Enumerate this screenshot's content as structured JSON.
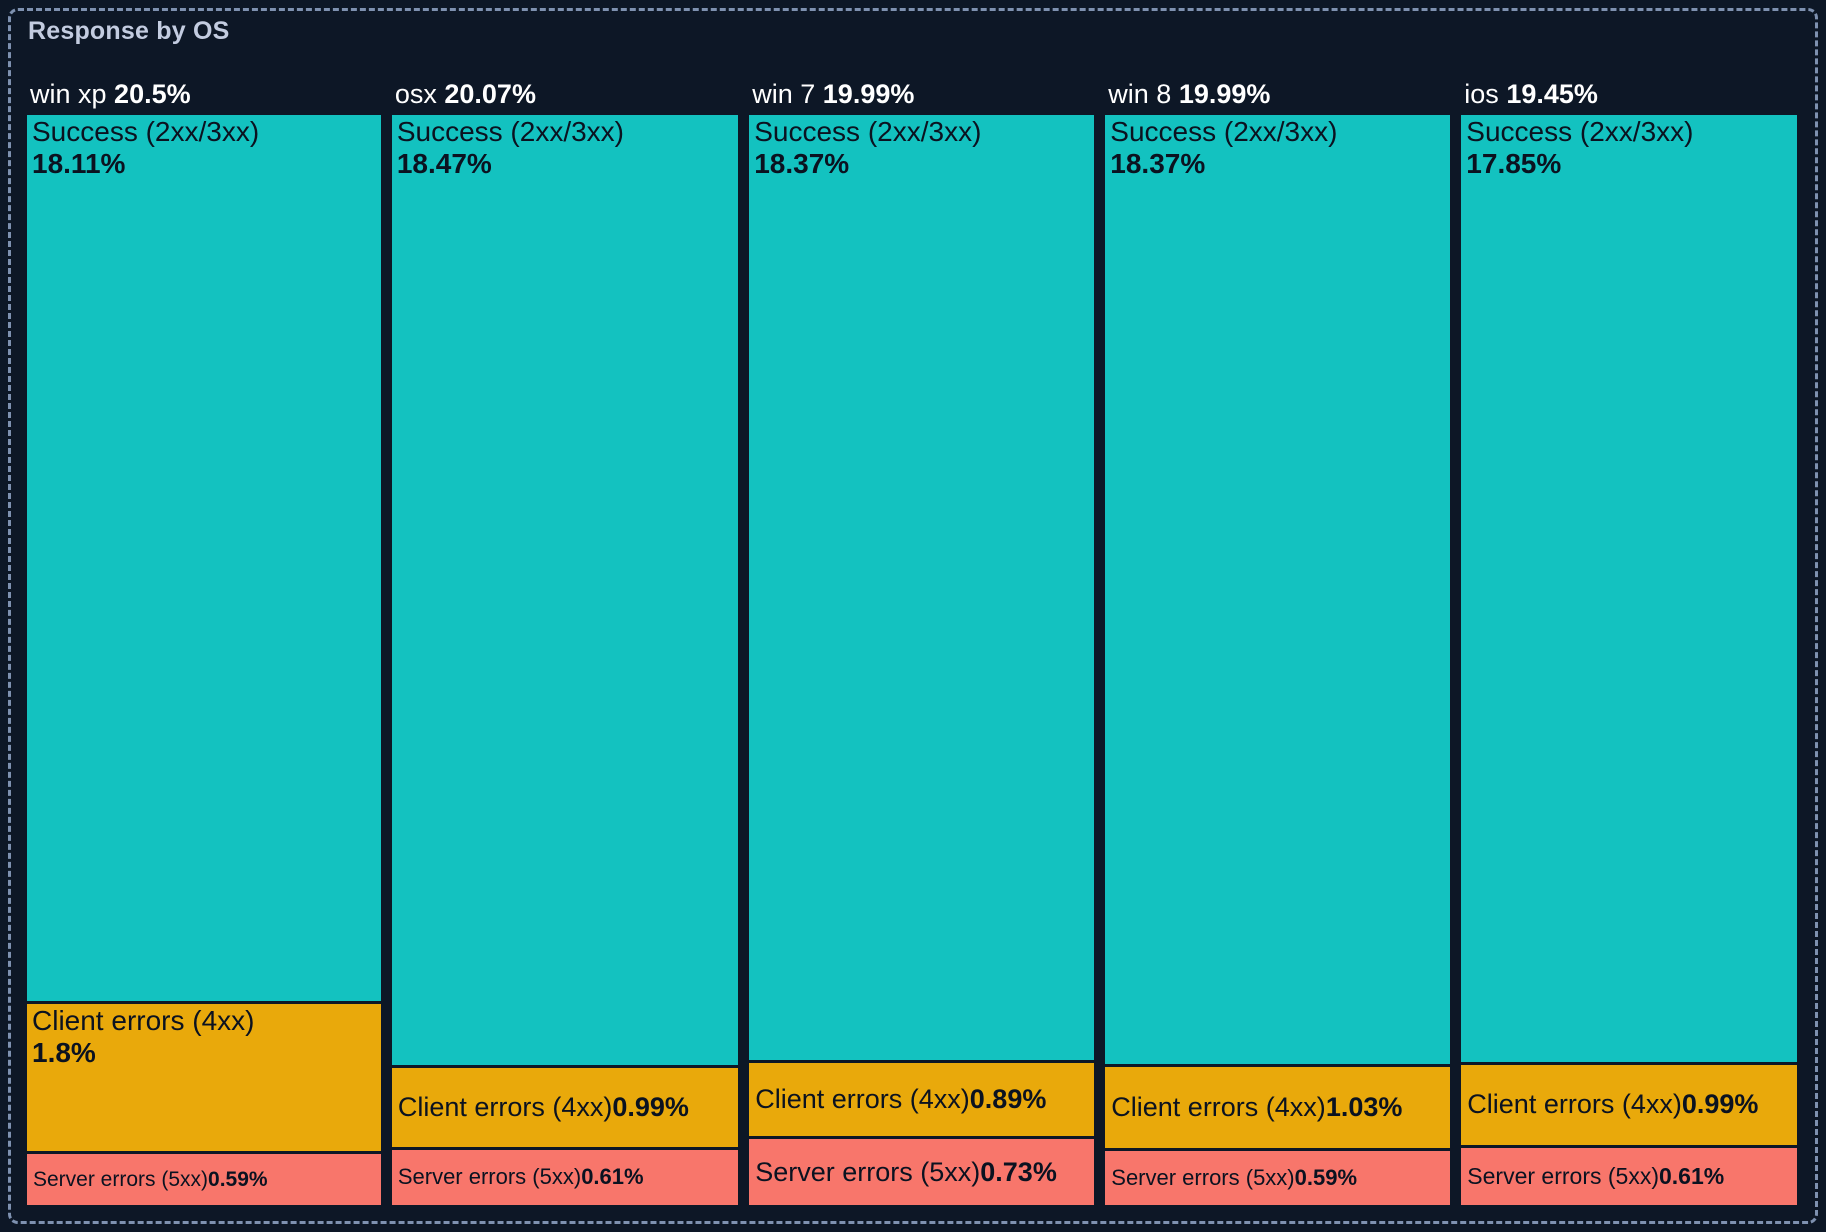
{
  "title": "Response by OS",
  "colors": {
    "background": "#0d1726",
    "frame_border": "#7e91b0",
    "title_text": "#c3cce0",
    "header_text": "#ffffff",
    "segment_text": "#0b1220",
    "success": "#13c2c0",
    "client_errors": "#e9a90b",
    "server_errors": "#f8766b"
  },
  "chart_data": {
    "type": "treemap",
    "title": "Response by OS",
    "unit": "%",
    "orientation": "columns-proportional-width, segments-proportional-height",
    "groups": [
      {
        "name": "win xp",
        "share": 20.5,
        "share_label": "20.5%",
        "segments": [
          {
            "label": "Success (2xx/3xx)",
            "value": 18.11,
            "value_label": "18.11%",
            "category": "success"
          },
          {
            "label": "Client errors (4xx)",
            "value": 1.8,
            "value_label": "1.8%",
            "category": "client_errors"
          },
          {
            "label": "Server errors (5xx)",
            "value": 0.59,
            "value_label": "0.59%",
            "category": "server_errors"
          }
        ]
      },
      {
        "name": "osx",
        "share": 20.07,
        "share_label": "20.07%",
        "segments": [
          {
            "label": "Success (2xx/3xx)",
            "value": 18.47,
            "value_label": "18.47%",
            "category": "success"
          },
          {
            "label": "Client errors (4xx)",
            "value": 0.99,
            "value_label": "0.99%",
            "category": "client_errors"
          },
          {
            "label": "Server errors (5xx)",
            "value": 0.61,
            "value_label": "0.61%",
            "category": "server_errors"
          }
        ]
      },
      {
        "name": "win 7",
        "share": 19.99,
        "share_label": "19.99%",
        "segments": [
          {
            "label": "Success (2xx/3xx)",
            "value": 18.37,
            "value_label": "18.37%",
            "category": "success"
          },
          {
            "label": "Client errors (4xx)",
            "value": 0.89,
            "value_label": "0.89%",
            "category": "client_errors"
          },
          {
            "label": "Server errors (5xx)",
            "value": 0.73,
            "value_label": "0.73%",
            "category": "server_errors"
          }
        ]
      },
      {
        "name": "win 8",
        "share": 19.99,
        "share_label": "19.99%",
        "segments": [
          {
            "label": "Success (2xx/3xx)",
            "value": 18.37,
            "value_label": "18.37%",
            "category": "success"
          },
          {
            "label": "Client errors (4xx)",
            "value": 1.03,
            "value_label": "1.03%",
            "category": "client_errors"
          },
          {
            "label": "Server errors (5xx)",
            "value": 0.59,
            "value_label": "0.59%",
            "category": "server_errors"
          }
        ]
      },
      {
        "name": "ios",
        "share": 19.45,
        "share_label": "19.45%",
        "segments": [
          {
            "label": "Success (2xx/3xx)",
            "value": 17.85,
            "value_label": "17.85%",
            "category": "success"
          },
          {
            "label": "Client errors (4xx)",
            "value": 0.99,
            "value_label": "0.99%",
            "category": "client_errors"
          },
          {
            "label": "Server errors (5xx)",
            "value": 0.61,
            "value_label": "0.61%",
            "category": "server_errors"
          }
        ]
      }
    ]
  }
}
